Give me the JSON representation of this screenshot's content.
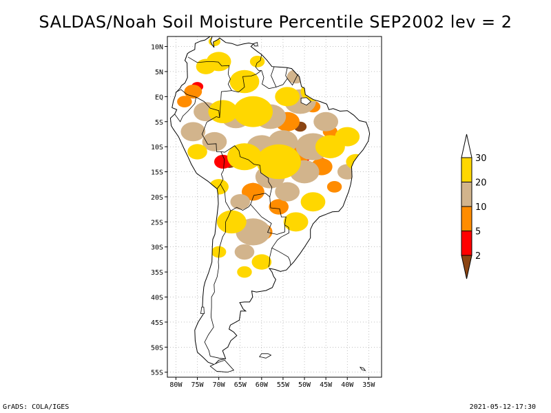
{
  "title": "SALDAS/Noah Soil Moisture Percentile SEP2002 lev = 2",
  "footer": {
    "left": "GrADS: COLA/IGES",
    "right": "2021-05-12-17:30"
  },
  "map": {
    "lon_range": [
      -82,
      -32
    ],
    "lat_range": [
      -56,
      12
    ],
    "lon_ticks": [
      -80,
      -75,
      -70,
      -65,
      -60,
      -55,
      -50,
      -45,
      -40,
      -35
    ],
    "lon_labels": [
      "80W",
      "75W",
      "70W",
      "65W",
      "60W",
      "55W",
      "50W",
      "45W",
      "40W",
      "35W"
    ],
    "lat_ticks": [
      10,
      5,
      0,
      -5,
      -10,
      -15,
      -20,
      -25,
      -30,
      -35,
      -40,
      -45,
      -50,
      -55
    ],
    "lat_labels": [
      "10N",
      "5N",
      "EQ",
      "5S",
      "10S",
      "15S",
      "20S",
      "25S",
      "30S",
      "35S",
      "40S",
      "45S",
      "50S",
      "55S"
    ],
    "grid": "dotted"
  },
  "colorbar": {
    "levels": [
      2,
      5,
      10,
      20,
      30
    ],
    "labels": [
      "2",
      "5",
      "10",
      "20",
      "30"
    ],
    "colors": [
      "#8b4513",
      "#ff0000",
      "#ff8c00",
      "#d2b48c",
      "#ffd700",
      "#ffffff"
    ]
  },
  "chart_data": {
    "type": "heatmap",
    "title": "SALDAS/Noah Soil Moisture Percentile SEP2002 lev = 2",
    "xlabel": "",
    "ylabel": "",
    "xlim": [
      -82,
      -32
    ],
    "ylim": [
      -56,
      12
    ],
    "regions": [
      {
        "lon": -67.5,
        "lat": -13,
        "r": 1.6,
        "cls": 0
      },
      {
        "lon": -51,
        "lat": -6,
        "r": 1.3,
        "cls": 0
      },
      {
        "lon": -62,
        "lat": -18,
        "r": 1.0,
        "cls": 1
      },
      {
        "lon": -69,
        "lat": -13,
        "r": 1.8,
        "cls": 1
      },
      {
        "lon": -54,
        "lat": -6,
        "r": 1.2,
        "cls": 1
      },
      {
        "lon": -56,
        "lat": -21.5,
        "r": 1.3,
        "cls": 1
      },
      {
        "lon": -50,
        "lat": -12,
        "r": 1.3,
        "cls": 1
      },
      {
        "lon": -46,
        "lat": -13,
        "r": 1.0,
        "cls": 1
      },
      {
        "lon": -75,
        "lat": 2,
        "r": 1.2,
        "cls": 1
      },
      {
        "lon": -62,
        "lat": -19,
        "r": 2.3,
        "cls": 2
      },
      {
        "lon": -54,
        "lat": -5,
        "r": 2.5,
        "cls": 2
      },
      {
        "lon": -52,
        "lat": -12,
        "r": 2.5,
        "cls": 2
      },
      {
        "lon": -46,
        "lat": -14,
        "r": 2.2,
        "cls": 2
      },
      {
        "lon": -56,
        "lat": -22,
        "r": 2.0,
        "cls": 2
      },
      {
        "lon": -60,
        "lat": -27,
        "r": 2.2,
        "cls": 2
      },
      {
        "lon": -78,
        "lat": -1,
        "r": 1.5,
        "cls": 2
      },
      {
        "lon": -76,
        "lat": 1,
        "r": 1.8,
        "cls": 2
      },
      {
        "lon": -43,
        "lat": -18,
        "r": 1.5,
        "cls": 2
      },
      {
        "lon": -48,
        "lat": -2,
        "r": 1.5,
        "cls": 2
      },
      {
        "lon": -44,
        "lat": -7,
        "r": 1.5,
        "cls": 2
      },
      {
        "lon": -51,
        "lat": -1,
        "r": 3.2,
        "cls": 3
      },
      {
        "lon": -58,
        "lat": -4,
        "r": 3.2,
        "cls": 3
      },
      {
        "lon": -66,
        "lat": -4,
        "r": 3.0,
        "cls": 3
      },
      {
        "lon": -62,
        "lat": -27,
        "r": 3.5,
        "cls": 3
      },
      {
        "lon": -58,
        "lat": -16,
        "r": 3.0,
        "cls": 3
      },
      {
        "lon": -48,
        "lat": -10,
        "r": 3.5,
        "cls": 3
      },
      {
        "lon": -55,
        "lat": -9,
        "r": 3.0,
        "cls": 3
      },
      {
        "lon": -45,
        "lat": -5,
        "r": 2.5,
        "cls": 3
      },
      {
        "lon": -50,
        "lat": -15,
        "r": 3.0,
        "cls": 3
      },
      {
        "lon": -73,
        "lat": -3,
        "r": 2.5,
        "cls": 3
      },
      {
        "lon": -76,
        "lat": -7,
        "r": 2.5,
        "cls": 3
      },
      {
        "lon": -40,
        "lat": -15,
        "r": 2.0,
        "cls": 3
      },
      {
        "lon": -52,
        "lat": 4,
        "r": 1.8,
        "cls": 3
      },
      {
        "lon": -65,
        "lat": -21,
        "r": 2.0,
        "cls": 3
      },
      {
        "lon": -60,
        "lat": -10,
        "r": 3.0,
        "cls": 3
      },
      {
        "lon": -54,
        "lat": -19,
        "r": 2.5,
        "cls": 3
      },
      {
        "lon": -64,
        "lat": -31,
        "r": 2.0,
        "cls": 3
      },
      {
        "lon": -71,
        "lat": -9,
        "r": 2.5,
        "cls": 3
      },
      {
        "lon": -48,
        "lat": 1,
        "r": 2.5,
        "cls": 4
      },
      {
        "lon": -64,
        "lat": 3,
        "r": 3.0,
        "cls": 4
      },
      {
        "lon": -56,
        "lat": -13,
        "r": 4.5,
        "cls": 4
      },
      {
        "lon": -64,
        "lat": -12,
        "r": 3.5,
        "cls": 4
      },
      {
        "lon": -44,
        "lat": -10,
        "r": 3.0,
        "cls": 4
      },
      {
        "lon": -40,
        "lat": -8,
        "r": 2.5,
        "cls": 4
      },
      {
        "lon": -38,
        "lat": -13,
        "r": 2.0,
        "cls": 4
      },
      {
        "lon": -70,
        "lat": -18,
        "r": 2.0,
        "cls": 4
      },
      {
        "lon": -67,
        "lat": -25,
        "r": 3.0,
        "cls": 4
      },
      {
        "lon": -60,
        "lat": -33,
        "r": 2.0,
        "cls": 4
      },
      {
        "lon": -64,
        "lat": -35,
        "r": 1.5,
        "cls": 4
      },
      {
        "lon": -70,
        "lat": 7,
        "r": 2.5,
        "cls": 4
      },
      {
        "lon": -73,
        "lat": 6,
        "r": 2.0,
        "cls": 4
      },
      {
        "lon": -61,
        "lat": 7,
        "r": 1.5,
        "cls": 4
      },
      {
        "lon": -71,
        "lat": 11,
        "r": 1.2,
        "cls": 4
      },
      {
        "lon": -62,
        "lat": -3,
        "r": 4.0,
        "cls": 4
      },
      {
        "lon": -52,
        "lat": -25,
        "r": 2.5,
        "cls": 4
      },
      {
        "lon": -48,
        "lat": -21,
        "r": 2.5,
        "cls": 4
      },
      {
        "lon": -75,
        "lat": -11,
        "r": 2.0,
        "cls": 4
      },
      {
        "lon": -69,
        "lat": -3,
        "r": 3.0,
        "cls": 4
      },
      {
        "lon": -70,
        "lat": -31,
        "r": 1.5,
        "cls": 4
      },
      {
        "lon": -54,
        "lat": 0,
        "r": 2.5,
        "cls": 4
      }
    ]
  }
}
